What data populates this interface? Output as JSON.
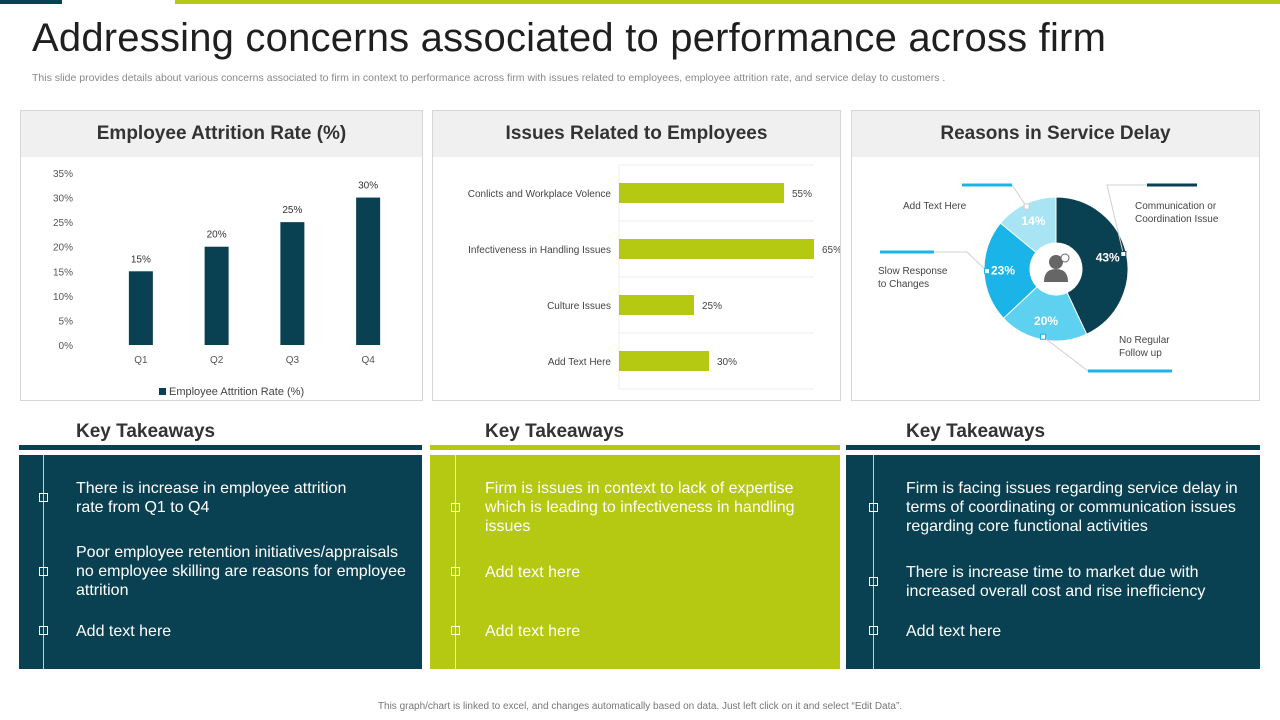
{
  "title": "Addressing concerns associated to performance across firm",
  "subtitle": "This slide provides details about various concerns associated to firm in context to performance across firm with issues related to employees, employee attrition rate, and service delay to customers .",
  "footer": "This graph/chart is linked to excel, and changes automatically based on data. Just left click on it and select “Edit Data”.",
  "colors": {
    "dark_teal": "#0a4152",
    "lime": "#b5c812",
    "pie": [
      "#0a4152",
      "#5ed0f0",
      "#1ab4e8",
      "#a8e4f4"
    ]
  },
  "panels": {
    "attrition": {
      "title": "Employee Attrition Rate (%)"
    },
    "issues": {
      "title": "Issues Related to Employees"
    },
    "delay": {
      "title": "Reasons in Service Delay"
    }
  },
  "chart_data": [
    {
      "type": "bar",
      "title": "Employee Attrition Rate (%)",
      "categories": [
        "Q1",
        "Q2",
        "Q3",
        "Q4"
      ],
      "series": [
        {
          "name": "Employee Attrition Rate (%)",
          "values": [
            15,
            20,
            25,
            30
          ]
        }
      ],
      "data_labels": [
        "15%",
        "20%",
        "25%",
        "30%"
      ],
      "ylim": [
        0,
        35
      ],
      "yticks": [
        "0%",
        "5%",
        "10%",
        "15%",
        "20%",
        "25%",
        "30%",
        "35%"
      ],
      "grid": false,
      "legend": "bottom"
    },
    {
      "type": "bar",
      "orientation": "horizontal",
      "title": "Issues Related to Employees",
      "categories": [
        "Conlicts and Workplace Volence",
        "Infectiveness in Handling Issues",
        "Culture Issues",
        "Add Text Here"
      ],
      "values": [
        55,
        65,
        25,
        30
      ],
      "data_labels": [
        "55%",
        "65%",
        "25%",
        "30%"
      ],
      "xlim": [
        0,
        100
      ]
    },
    {
      "type": "pie",
      "title": "Reasons in Service Delay",
      "center_icon": "user-icon",
      "slices": [
        {
          "label": "Communication or Coordination Issue",
          "value": 43,
          "text": "43%"
        },
        {
          "label": "No Regular Follow up",
          "value": 20,
          "text": "20%"
        },
        {
          "label": "Slow Response to Changes",
          "value": 23,
          "text": "23%"
        },
        {
          "label": "Add Text Here",
          "value": 14,
          "text": "14%"
        }
      ]
    }
  ],
  "takeaways": [
    {
      "heading": "Key Takeaways",
      "items": [
        "There is increase in employee attrition rate from Q1 to Q4",
        "Poor employee retention initiatives/appraisals no employee skilling are reasons for employee attrition",
        "Add text here"
      ]
    },
    {
      "heading": "Key Takeaways",
      "items": [
        "Firm is issues in context to lack of expertise which is leading to infectiveness in handling issues",
        "Add text here",
        "Add text here"
      ]
    },
    {
      "heading": "Key Takeaways",
      "items": [
        "Firm is facing issues regarding service delay in terms of coordinating or communication issues regarding core functional activities",
        "There is increase time to market due with increased overall cost and rise inefficiency",
        "Add text here"
      ]
    }
  ]
}
